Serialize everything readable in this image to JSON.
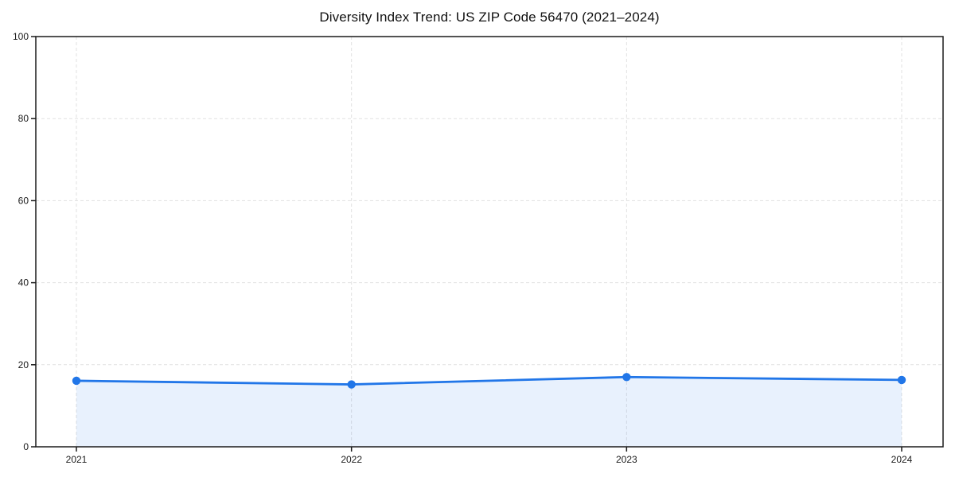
{
  "chart_data": {
    "type": "area",
    "title": "Diversity Index Trend: US ZIP Code 56470 (2021–2024)",
    "x": [
      "2021",
      "2022",
      "2023",
      "2024"
    ],
    "series": [
      {
        "name": "Diversity Index",
        "values": [
          16.1,
          15.2,
          17.0,
          16.3
        ]
      }
    ],
    "xlabel": "",
    "ylabel": "",
    "ylim": [
      0,
      100
    ],
    "yticks": [
      0,
      20,
      40,
      60,
      80,
      100
    ],
    "grid": true,
    "grid_style": "dashed",
    "legend": false,
    "colors": {
      "line": "#2176e8",
      "marker": "#2176e8",
      "fill": "#2176e8",
      "fill_opacity": 0.1,
      "grid": "#e1e1e1",
      "axis": "#1a1a1a",
      "tick_text": "#1a1a1a",
      "background": "#ffffff"
    }
  }
}
